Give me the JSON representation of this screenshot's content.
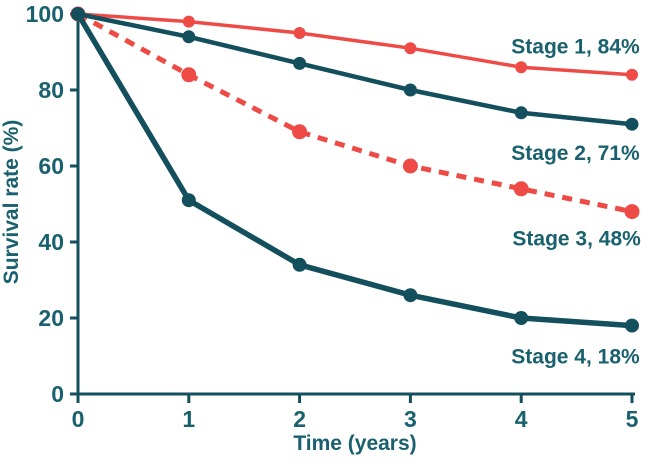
{
  "chart_data": {
    "type": "line",
    "title": "",
    "xlabel": "Time (years)",
    "ylabel": "Survival rate (%)",
    "x": [
      0,
      1,
      2,
      3,
      4,
      5
    ],
    "x_ticks": [
      0,
      1,
      2,
      3,
      4,
      5
    ],
    "y_ticks": [
      0,
      20,
      40,
      60,
      80,
      100
    ],
    "xlim": [
      0,
      5
    ],
    "ylim": [
      0,
      100
    ],
    "grid": false,
    "legend_position": "inline-annotations",
    "series": [
      {
        "name": "Stage 1",
        "values": [
          100,
          98,
          95,
          91,
          86,
          84
        ],
        "color": "red",
        "dash": false,
        "label": "Stage 1, 84%",
        "label_x": 4.49,
        "label_y": 91.5
      },
      {
        "name": "Stage 3",
        "values": [
          100,
          84,
          69,
          60,
          54,
          48
        ],
        "color": "red",
        "dash": true,
        "label": "Stage 3, 48%",
        "label_x": 4.5,
        "label_y": 41
      },
      {
        "name": "Stage 2",
        "values": [
          100,
          94,
          87,
          80,
          74,
          71
        ],
        "color": "teal",
        "dash": false,
        "label": "Stage 2, 71%",
        "label_x": 4.49,
        "label_y": 63.5
      },
      {
        "name": "Stage 4",
        "values": [
          100,
          51,
          34,
          26,
          20,
          18
        ],
        "color": "teal",
        "dash": false,
        "label": "Stage 4, 18%",
        "label_x": 4.49,
        "label_y": 10
      }
    ]
  },
  "colors": {
    "red": "#ee4b47",
    "teal": "#134f5d",
    "text": "#19616e",
    "background": "#ffffff"
  }
}
